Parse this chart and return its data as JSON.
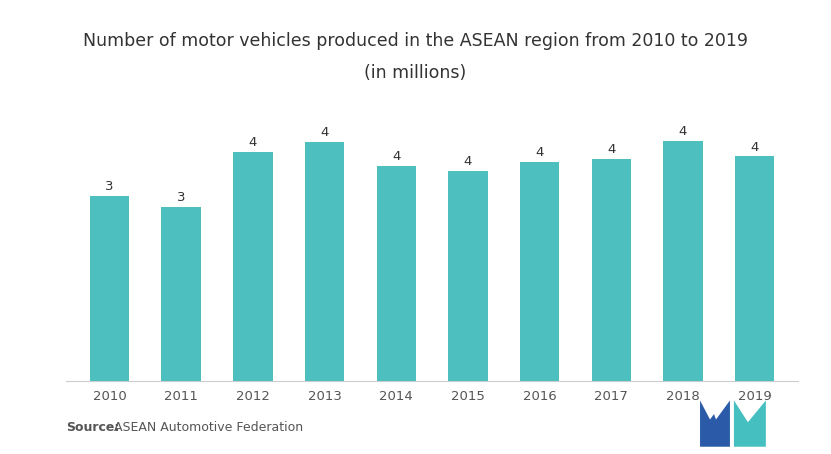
{
  "years": [
    2010,
    2011,
    2012,
    2013,
    2014,
    2015,
    2016,
    2017,
    2018,
    2019
  ],
  "values": [
    3.14,
    2.96,
    3.88,
    4.06,
    3.65,
    3.57,
    3.72,
    3.77,
    4.07,
    3.81
  ],
  "bar_color": "#4DBFBF",
  "bar_labels": [
    "3",
    "3",
    "4",
    "4",
    "4",
    "4",
    "4",
    "4",
    "4",
    "4"
  ],
  "title_line1": "Number of motor vehicles produced in the ASEAN region from 2010 to 2019",
  "title_line2": "(in millions)",
  "source_bold": "Source:",
  "source_text": " ASEAN Automotive Federation",
  "background_color": "#ffffff",
  "ylim": [
    0,
    5.0
  ],
  "title_fontsize": 12.5,
  "label_fontsize": 9.5,
  "tick_fontsize": 9.5,
  "source_fontsize": 9,
  "logo_blue": "#2B5BA8",
  "logo_teal": "#45BFBF"
}
